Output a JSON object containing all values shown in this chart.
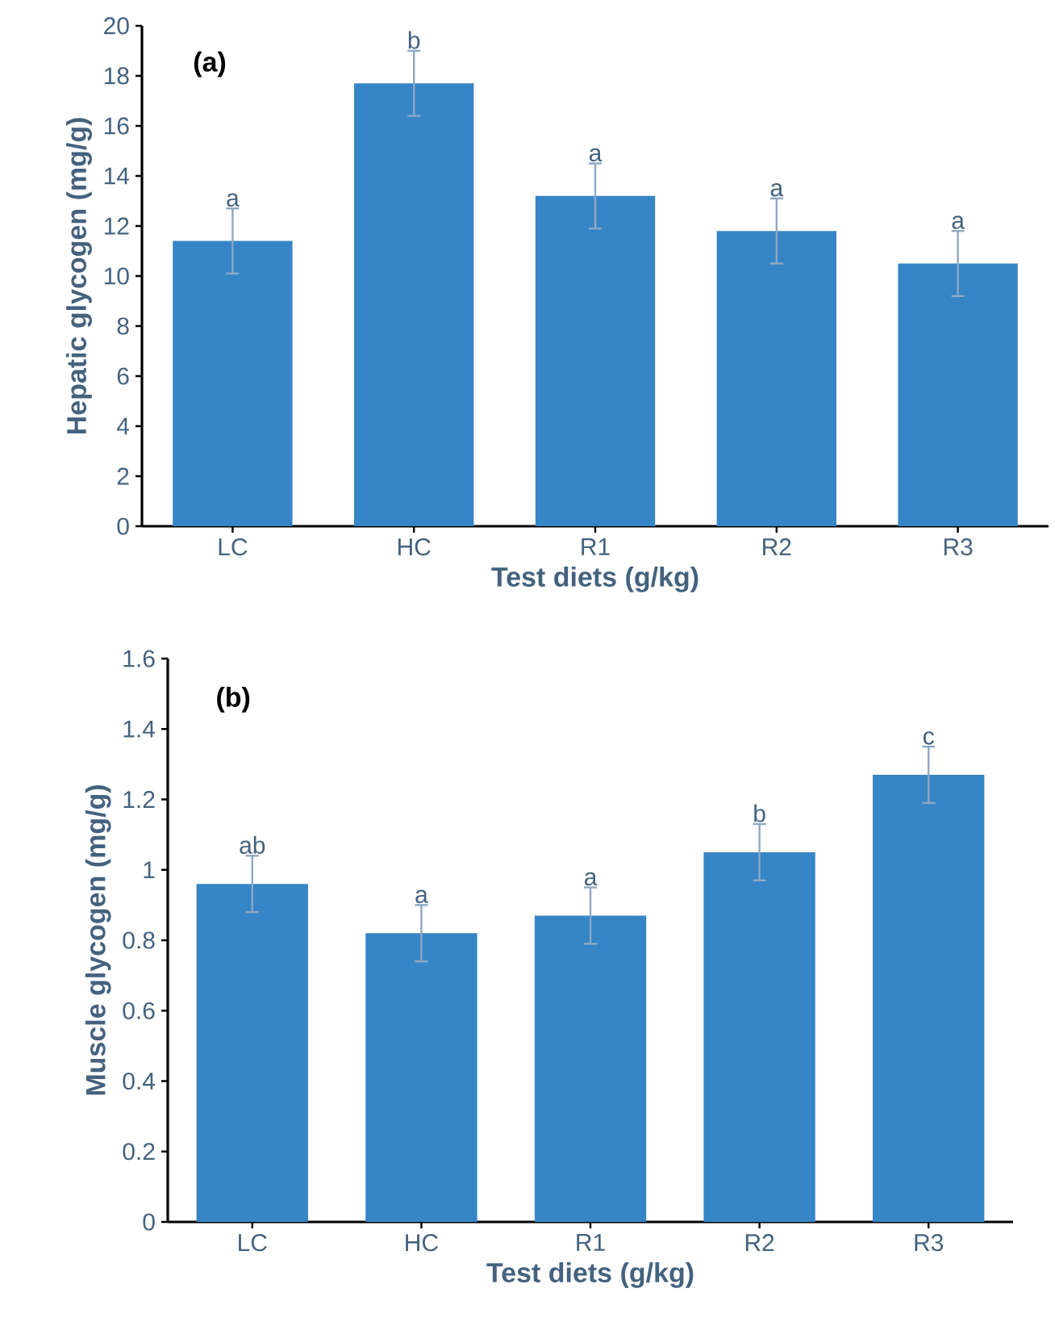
{
  "chart_data": [
    {
      "type": "bar",
      "title": "(a)",
      "xlabel": "Test diets (g/kg)",
      "ylabel": "Hepatic glycogen (mg/g)",
      "categories": [
        "LC",
        "HC",
        "R1",
        "R2",
        "R3"
      ],
      "values": [
        11.4,
        17.7,
        13.2,
        11.8,
        10.5
      ],
      "errors": [
        1.3,
        1.3,
        1.3,
        1.3,
        1.3
      ],
      "color": "#3685c6",
      "ylim": [
        0,
        20
      ],
      "yticks": [
        0,
        2,
        4,
        6,
        8,
        10,
        12,
        14,
        16,
        18,
        20
      ],
      "grid": false,
      "annotations": [
        {
          "text": "a",
          "x": "LC",
          "y": 12.7
        },
        {
          "text": "b",
          "x": "HC",
          "y": 19.0
        },
        {
          "text": "a",
          "x": "R1",
          "y": 14.5
        },
        {
          "text": "a",
          "x": "R2",
          "y": 13.1
        },
        {
          "text": "a",
          "x": "R3",
          "y": 11.8
        }
      ]
    },
    {
      "type": "bar",
      "title": "(b)",
      "xlabel": "Test diets (g/kg)",
      "ylabel": "Muscle glycogen (mg/g)",
      "categories": [
        "LC",
        "HC",
        "R1",
        "R2",
        "R3"
      ],
      "values": [
        0.96,
        0.82,
        0.87,
        1.05,
        1.27
      ],
      "errors": [
        0.08,
        0.08,
        0.08,
        0.08,
        0.08
      ],
      "color": "#3685c6",
      "ylim": [
        0,
        1.6
      ],
      "yticks": [
        0,
        0.2,
        0.4,
        0.6,
        0.8,
        1,
        1.2,
        1.4,
        1.6
      ],
      "grid": false,
      "annotations": [
        {
          "text": "ab",
          "x": "LC",
          "y": 1.04
        },
        {
          "text": "a",
          "x": "HC",
          "y": 0.9
        },
        {
          "text": "a",
          "x": "R1",
          "y": 0.95
        },
        {
          "text": "b",
          "x": "R2",
          "y": 1.13
        },
        {
          "text": "c",
          "x": "R3",
          "y": 1.35
        }
      ]
    }
  ]
}
